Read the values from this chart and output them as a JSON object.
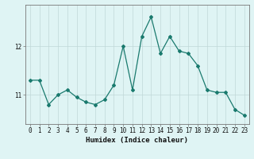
{
  "x": [
    0,
    1,
    2,
    3,
    4,
    5,
    6,
    7,
    8,
    9,
    10,
    11,
    12,
    13,
    14,
    15,
    16,
    17,
    18,
    19,
    20,
    21,
    22,
    23
  ],
  "y": [
    11.3,
    11.3,
    10.8,
    11.0,
    11.1,
    10.95,
    10.85,
    10.8,
    10.9,
    11.2,
    12.0,
    11.1,
    12.2,
    12.6,
    11.85,
    12.2,
    11.9,
    11.85,
    11.6,
    11.1,
    11.05,
    11.05,
    10.7,
    10.58
  ],
  "line_color": "#1a7a6e",
  "marker": "D",
  "marker_size": 2.0,
  "line_width": 0.9,
  "xlabel": "Humidex (Indice chaleur)",
  "background_color": "#dff4f4",
  "grid_color": "#c0d8d8",
  "ylim": [
    10.4,
    12.85
  ],
  "xlim": [
    -0.5,
    23.5
  ],
  "yticks": [
    11,
    12
  ],
  "xticks": [
    0,
    1,
    2,
    3,
    4,
    5,
    6,
    7,
    8,
    9,
    10,
    11,
    12,
    13,
    14,
    15,
    16,
    17,
    18,
    19,
    20,
    21,
    22,
    23
  ],
  "tick_fontsize": 5.5,
  "label_fontsize": 6.5
}
